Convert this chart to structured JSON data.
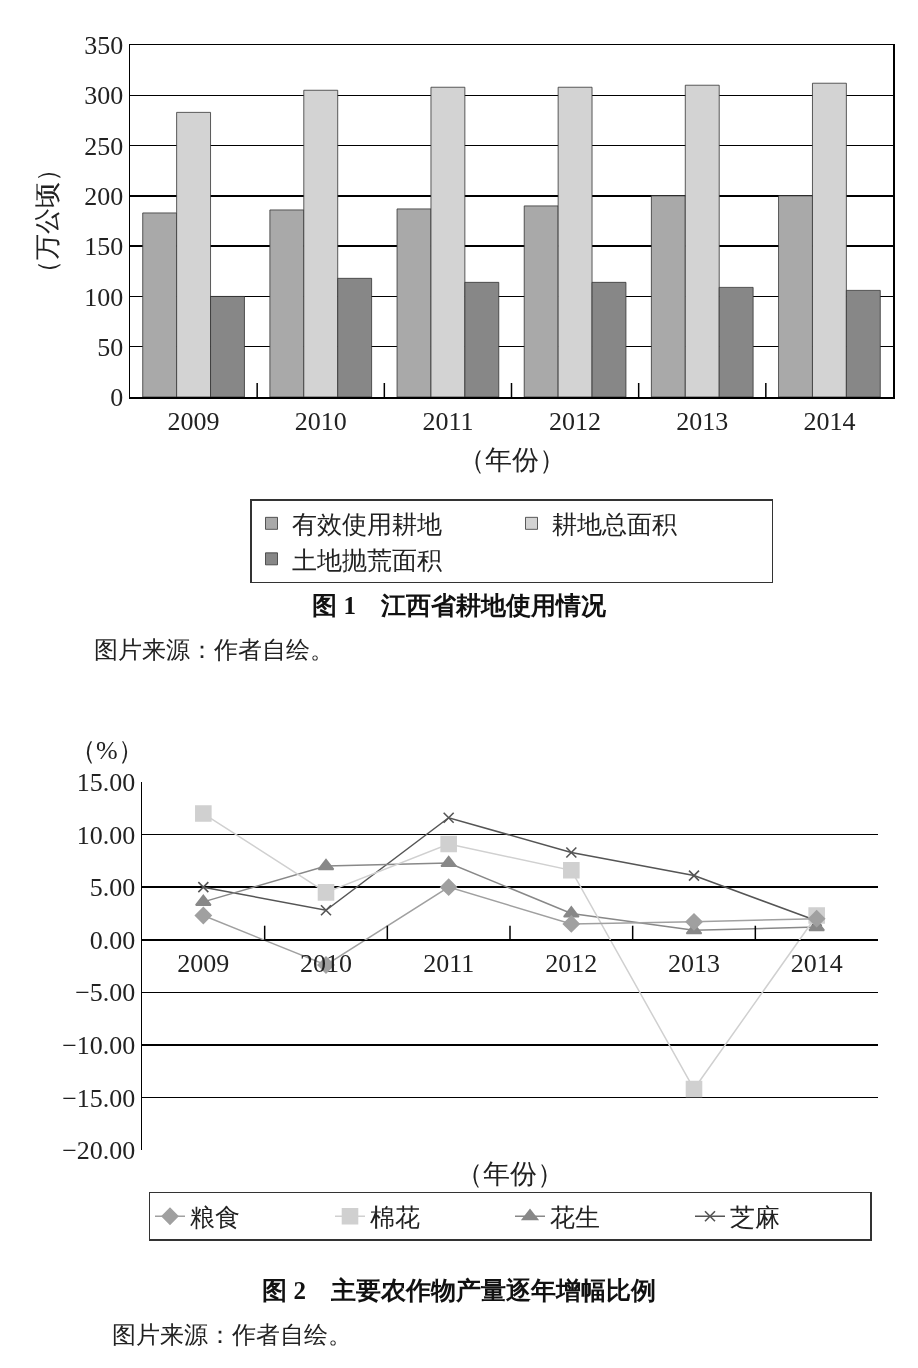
{
  "chart_data": [
    {
      "type": "bar",
      "title": "图 1　江西省耕地使用情况",
      "xlabel": "（年份）",
      "ylabel": "（万公顷）",
      "annotations": [
        "图片来源：作者自绘。"
      ],
      "categories": [
        "2009",
        "2010",
        "2011",
        "2012",
        "2013",
        "2014"
      ],
      "series": [
        {
          "name": "有效使用耕地",
          "color": "#a9a9a9",
          "values": [
            183,
            186,
            187,
            190,
            200,
            200
          ]
        },
        {
          "name": "耕地总面积",
          "color": "#d3d3d3",
          "values": [
            283,
            305,
            308,
            308,
            310,
            312
          ]
        },
        {
          "name": "土地抛荒面积",
          "color": "#878787",
          "values": [
            100,
            118,
            114,
            114,
            109,
            106
          ]
        }
      ],
      "ylim": [
        0,
        350
      ],
      "yticks": [
        0,
        50,
        100,
        150,
        200,
        250,
        300,
        350
      ],
      "grid": "y",
      "legend": "bottom"
    },
    {
      "type": "line",
      "title": "图 2　主要农作物产量逐年增幅比例",
      "xlabel": "（年份）",
      "ylabel": "（%）",
      "annotations": [
        "图片来源：作者自绘。"
      ],
      "categories": [
        "2009",
        "2010",
        "2011",
        "2012",
        "2013",
        "2014"
      ],
      "series": [
        {
          "name": "粮食",
          "color": "#a0a0a0",
          "marker": "diamond",
          "values": [
            2.3,
            -2.4,
            5.0,
            1.5,
            1.7,
            2.0
          ]
        },
        {
          "name": "棉花",
          "color": "#d0d0d0",
          "marker": "square",
          "values": [
            12.0,
            4.5,
            9.1,
            6.6,
            -14.2,
            2.3
          ]
        },
        {
          "name": "花生",
          "color": "#888888",
          "marker": "triangle",
          "values": [
            3.6,
            7.0,
            7.3,
            2.5,
            0.9,
            1.2
          ]
        },
        {
          "name": "芝麻",
          "color": "#555555",
          "marker": "cross",
          "values": [
            5.0,
            2.8,
            11.6,
            8.3,
            6.1,
            1.8
          ]
        }
      ],
      "ylim": [
        -20,
        15
      ],
      "yticks": [
        {
          "value": -20,
          "label": "−20.00"
        },
        {
          "value": -15,
          "label": "−15.00"
        },
        {
          "value": -10,
          "label": "−10.00"
        },
        {
          "value": -5,
          "label": "−5.00"
        },
        {
          "value": 0,
          "label": "0.00"
        },
        {
          "value": 5,
          "label": "5.00"
        },
        {
          "value": 10,
          "label": "10.00"
        },
        {
          "value": 15,
          "label": "15.00"
        }
      ],
      "grid": "y",
      "legend": "bottom",
      "line_style": "solid"
    }
  ]
}
